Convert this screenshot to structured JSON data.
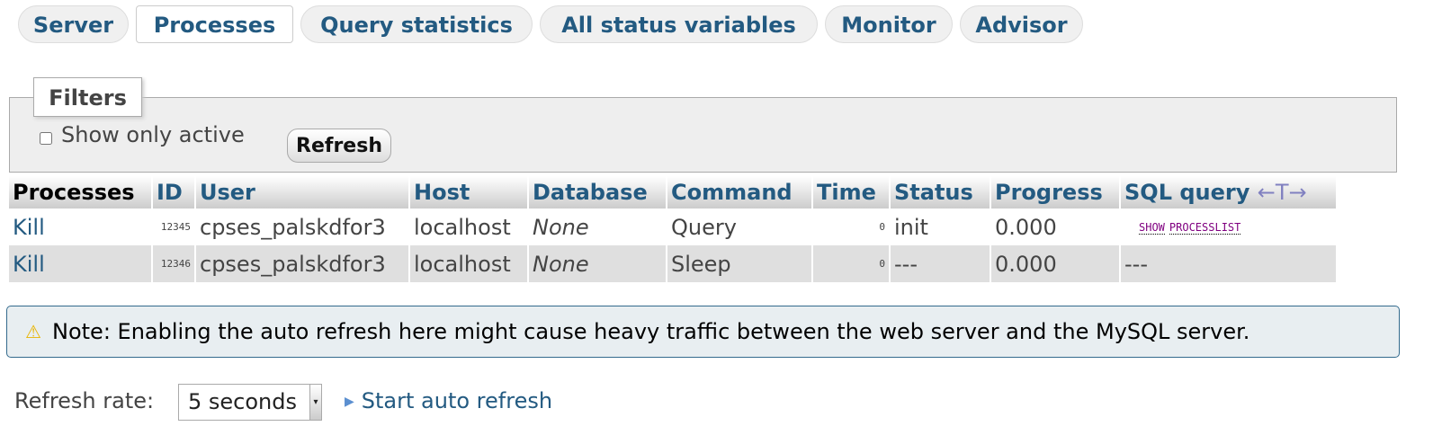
{
  "tabs": [
    {
      "label": "Server"
    },
    {
      "label": "Processes",
      "active": true
    },
    {
      "label": "Query statistics"
    },
    {
      "label": "All status variables"
    },
    {
      "label": "Monitor"
    },
    {
      "label": "Advisor"
    }
  ],
  "filters": {
    "legend": "Filters",
    "show_only_active": "Show only active",
    "show_only_active_checked": false,
    "refresh_button": "Refresh"
  },
  "table": {
    "headers": [
      "Processes",
      "ID",
      "User",
      "Host",
      "Database",
      "Command",
      "Time",
      "Status",
      "Progress",
      "SQL query"
    ],
    "column_toggle": "←T→",
    "rows": [
      {
        "kill": "Kill",
        "id": "12345",
        "user": "cpses_palskdfor3",
        "host": "localhost",
        "database": "None",
        "command": "Query",
        "time": "0",
        "status": "init",
        "progress": "0.000",
        "sql": [
          "SHOW",
          "PROCESSLIST"
        ]
      },
      {
        "kill": "Kill",
        "id": "12346",
        "user": "cpses_palskdfor3",
        "host": "localhost",
        "database": "None",
        "command": "Sleep",
        "time": "0",
        "status": "---",
        "progress": "0.000",
        "sql_text": "---"
      }
    ]
  },
  "note": {
    "icon": "warning-icon",
    "text": "Note: Enabling the auto refresh here might cause heavy traffic between the web server and the MySQL server."
  },
  "refresh": {
    "label": "Refresh rate:",
    "selected": "5 seconds",
    "start_link": "Start auto refresh"
  },
  "colors": {
    "link": "#235a81",
    "sql": "#800080",
    "note_bg": "#e8eef1"
  }
}
